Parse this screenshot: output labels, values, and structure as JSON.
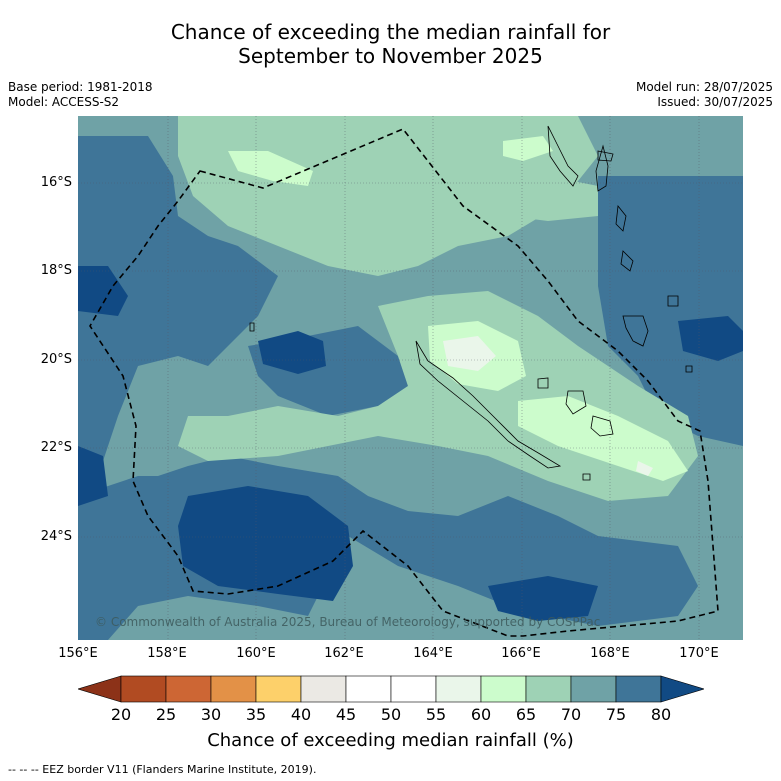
{
  "title_line1": "Chance of exceeding the median rainfall for",
  "title_line2": "September to November 2025",
  "meta": {
    "base_period": "Base period: 1981-2018",
    "model": "Model: ACCESS-S2",
    "model_run": "Model run: 28/07/2025",
    "issued": "Issued: 30/07/2025"
  },
  "map": {
    "lat_labels": [
      "16°S",
      "18°S",
      "20°S",
      "22°S",
      "24°S"
    ],
    "lon_labels": [
      "156°E",
      "158°E",
      "160°E",
      "162°E",
      "164°E",
      "166°E",
      "168°E",
      "170°E"
    ],
    "copyright": "© Commonwealth of Australia 2025, Bureau of Meteorology, supported by COSPPac"
  },
  "colorbar": {
    "ticks": [
      "20",
      "25",
      "30",
      "35",
      "40",
      "45",
      "50",
      "55",
      "60",
      "65",
      "70",
      "75",
      "80"
    ],
    "colors": {
      "below_20": "#8c3218",
      "20_25": "#b14b22",
      "25_30": "#cd6634",
      "30_35": "#e39147",
      "35_40": "#fdd06a",
      "40_45": "#ebe9e4",
      "45_50": "#ffffff",
      "50_55": "#ffffff",
      "55_60": "#eaf6ea",
      "60_65": "#ccfccc",
      "65_70": "#9ed2b5",
      "70_75": "#6fa2a6",
      "75_80": "#3f7598",
      "above_80": "#114a84"
    },
    "title": "Chance of exceeding median rainfall (%)"
  },
  "footnote": "--  --  -- EEZ border V11 (Flanders Marine Institute, 2019)."
}
